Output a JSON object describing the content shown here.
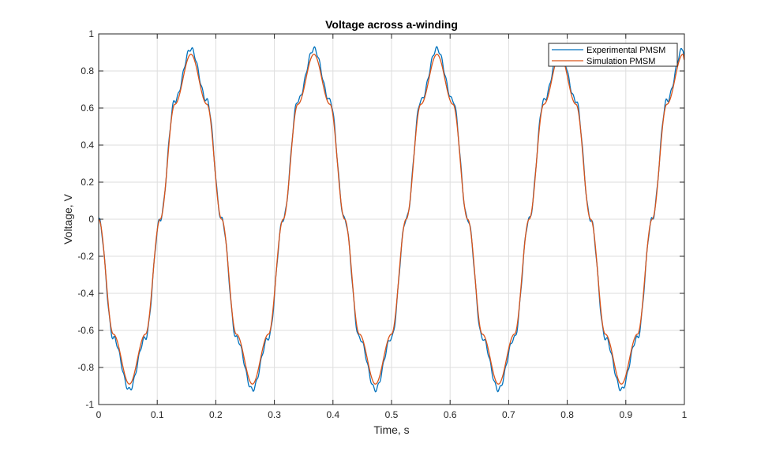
{
  "chart_data": {
    "type": "line",
    "title": "Voltage across a-winding",
    "xlabel": "Time, s",
    "ylabel": "Voltage, V",
    "xlim": [
      0,
      1
    ],
    "ylim": [
      -1,
      1
    ],
    "xticks": [
      0,
      0.1,
      0.2,
      0.3,
      0.4,
      0.5,
      0.6,
      0.7,
      0.8,
      0.9,
      1
    ],
    "xtick_labels": [
      "0",
      "0.1",
      "0.2",
      "0.3",
      "0.4",
      "0.5",
      "0.6",
      "0.7",
      "0.8",
      "0.9",
      "1"
    ],
    "yticks": [
      -1,
      -0.8,
      -0.6,
      -0.4,
      -0.2,
      0,
      0.2,
      0.4,
      0.6,
      0.8,
      1
    ],
    "ytick_labels": [
      "-1",
      "-0.8",
      "-0.6",
      "-0.4",
      "-0.2",
      "0",
      "0.2",
      "0.4",
      "0.6",
      "0.8",
      "1"
    ],
    "grid": true,
    "legend_position": "top-right",
    "series": [
      {
        "name": "Experimental PMSM",
        "color": "#0072BD",
        "x": [
          0,
          0.025,
          0.0525,
          0.08,
          0.105,
          0.13,
          0.1575,
          0.185,
          0.21,
          0.235,
          0.2625,
          0.29,
          0.315,
          0.34,
          0.3675,
          0.395,
          0.42,
          0.445,
          0.4725,
          0.5,
          0.525,
          0.55,
          0.5775,
          0.605,
          0.63,
          0.655,
          0.6825,
          0.71,
          0.735,
          0.76,
          0.7875,
          0.815,
          0.84,
          0.865,
          0.8925,
          0.92,
          0.945,
          0.97,
          0.9975,
          1
        ],
        "y": [
          0,
          -0.64,
          -0.92,
          -0.64,
          0,
          0.64,
          0.92,
          0.64,
          0,
          -0.64,
          -0.92,
          -0.64,
          0,
          0.64,
          0.92,
          0.64,
          0,
          -0.64,
          -0.92,
          -0.64,
          0,
          0.64,
          0.92,
          0.64,
          0,
          -0.64,
          -0.92,
          -0.64,
          0,
          0.64,
          0.92,
          0.64,
          0,
          -0.64,
          -0.92,
          -0.64,
          0,
          0.64,
          0.92,
          0.88
        ]
      },
      {
        "name": "Simulation PMSM",
        "color": "#D95319",
        "x": [
          0,
          0.025,
          0.0525,
          0.08,
          0.105,
          0.13,
          0.1575,
          0.185,
          0.21,
          0.235,
          0.2625,
          0.29,
          0.315,
          0.34,
          0.3675,
          0.395,
          0.42,
          0.445,
          0.4725,
          0.5,
          0.525,
          0.55,
          0.5775,
          0.605,
          0.63,
          0.655,
          0.6825,
          0.71,
          0.735,
          0.76,
          0.7875,
          0.815,
          0.84,
          0.865,
          0.8925,
          0.92,
          0.945,
          0.97,
          0.9975,
          1
        ],
        "y": [
          0,
          -0.62,
          -0.89,
          -0.62,
          0,
          0.62,
          0.89,
          0.62,
          0,
          -0.62,
          -0.89,
          -0.62,
          0,
          0.62,
          0.89,
          0.62,
          0,
          -0.62,
          -0.89,
          -0.62,
          0,
          0.62,
          0.89,
          0.62,
          0,
          -0.62,
          -0.89,
          -0.62,
          0,
          0.62,
          0.89,
          0.62,
          0,
          -0.62,
          -0.89,
          -0.62,
          0,
          0.62,
          0.89,
          0.86
        ]
      }
    ]
  }
}
